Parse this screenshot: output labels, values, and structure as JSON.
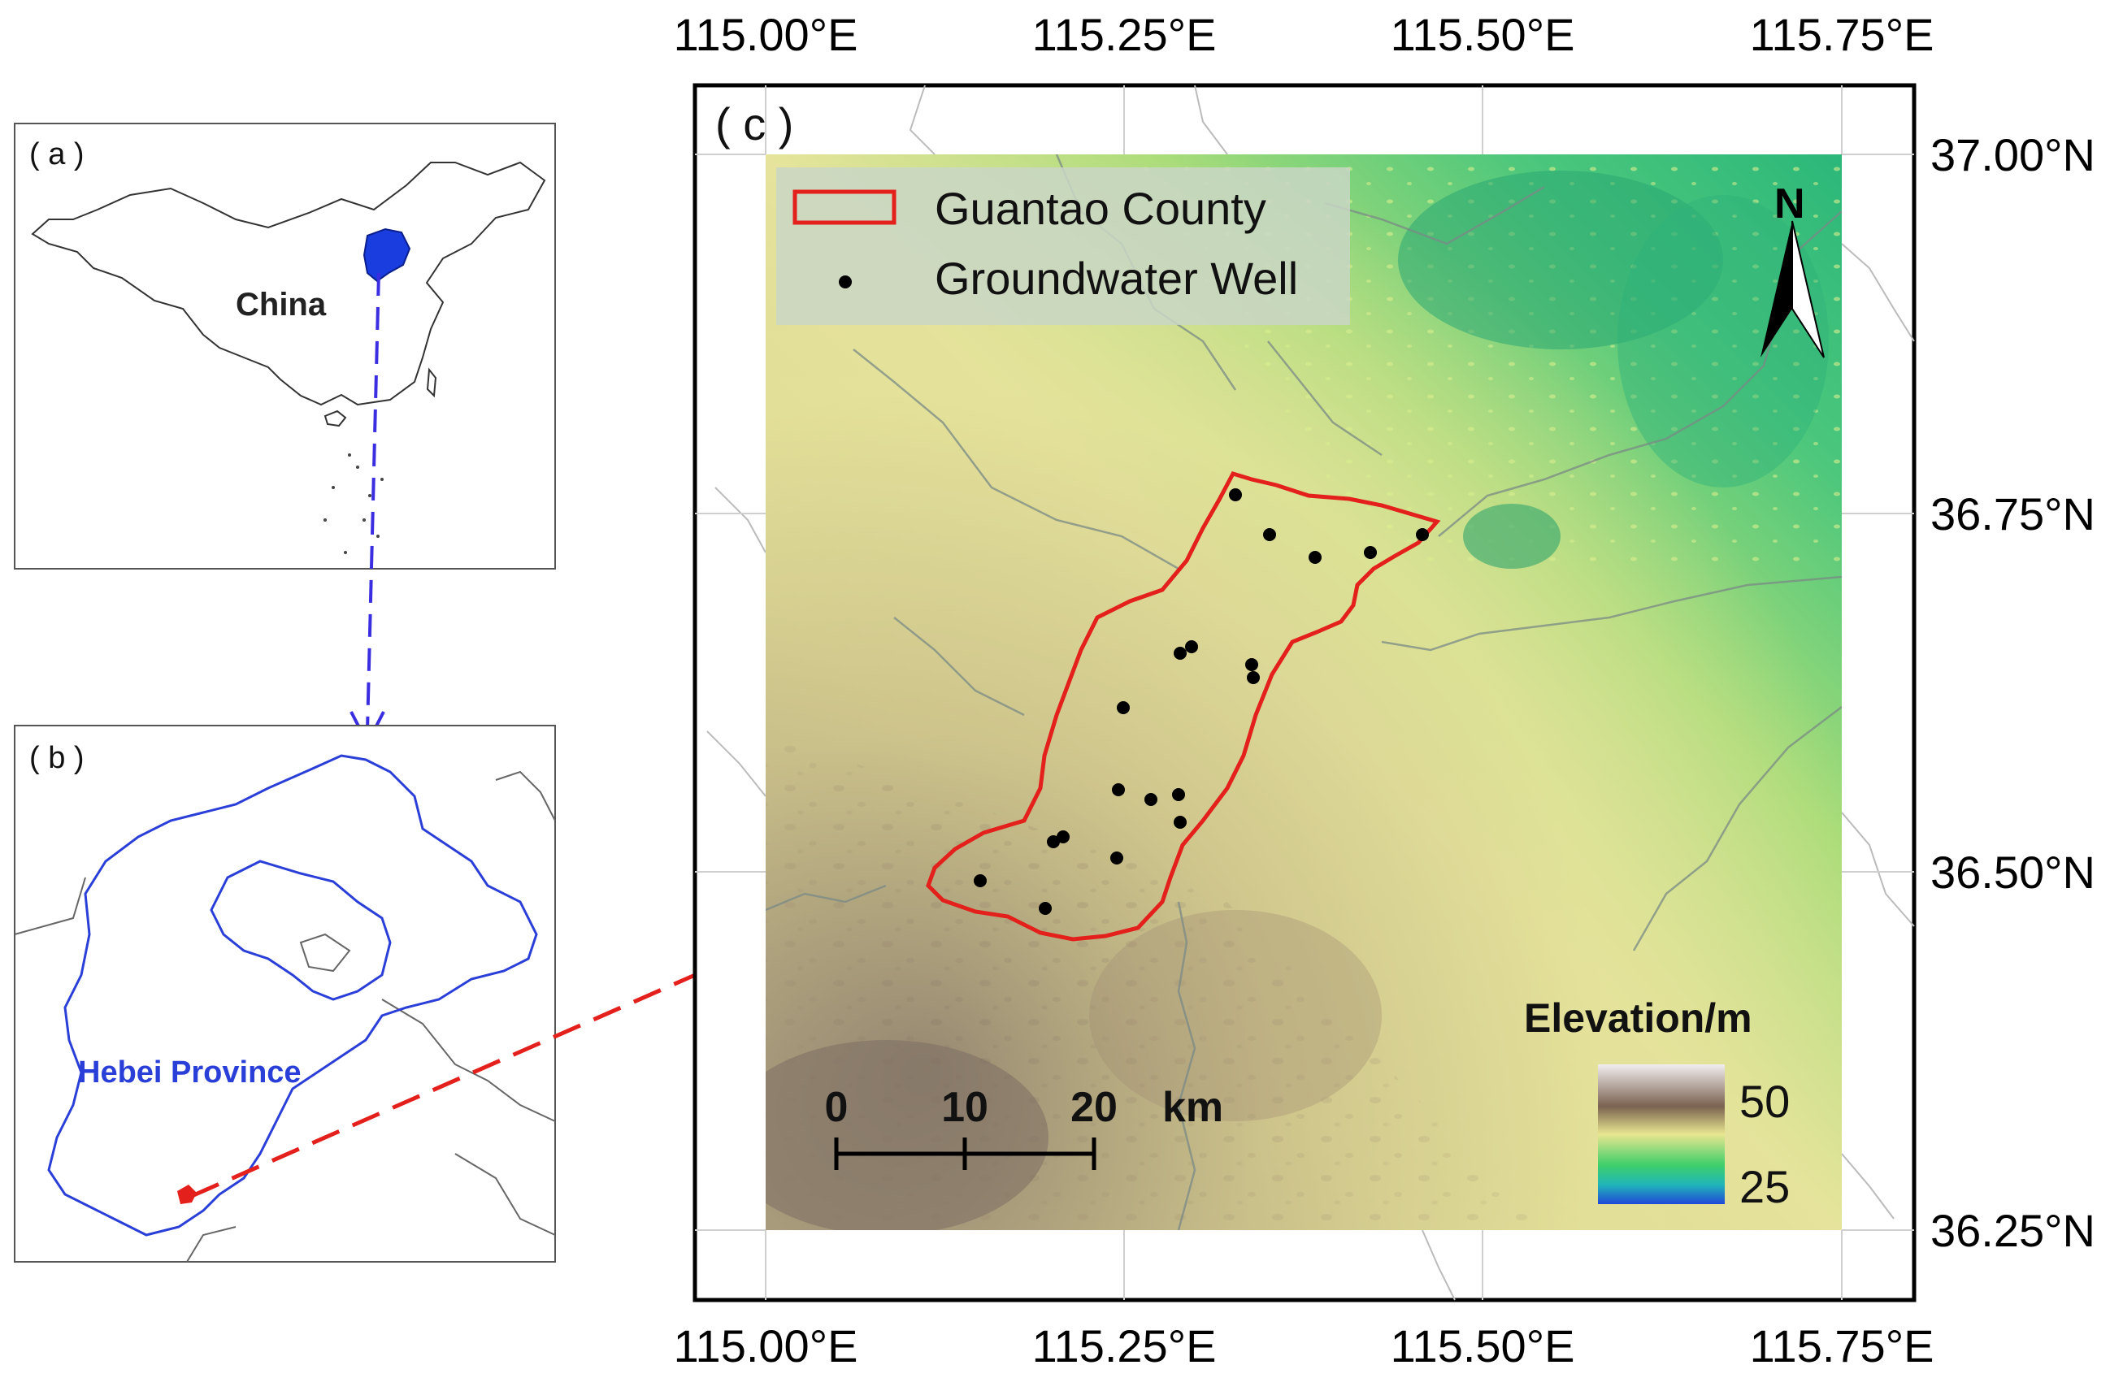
{
  "inset_a": {
    "panel_label": "( a )",
    "country_label": "China"
  },
  "inset_b": {
    "panel_label": "( b )",
    "province_label": "Hebei Province"
  },
  "map_c": {
    "panel_label": "( c )",
    "x_ticks": [
      "115.00°E",
      "115.25°E",
      "115.50°E",
      "115.75°E"
    ],
    "y_ticks": [
      "37.00°N",
      "36.75°N",
      "36.50°N",
      "36.25°N"
    ],
    "legend": {
      "county_label": "Guantao County",
      "well_label": "Groundwater Well"
    },
    "north_arrow_label": "N",
    "elevation_legend": {
      "title": "Elevation/m",
      "high_value": "50",
      "low_value": "25"
    },
    "scale_bar": {
      "labels": [
        "0",
        "10",
        "20"
      ],
      "unit": "km"
    }
  },
  "colors": {
    "county_boundary": "#e3201b",
    "province_boundary": "#2a3fd8",
    "arrow_blue": "#3b2ee0",
    "arrow_red": "#e3201b",
    "elev_high": "#7a6a5e",
    "elev_mid": "#e8e49a",
    "elev_low_green": "#3fc27a",
    "elev_lowest": "#1f5fd0"
  }
}
